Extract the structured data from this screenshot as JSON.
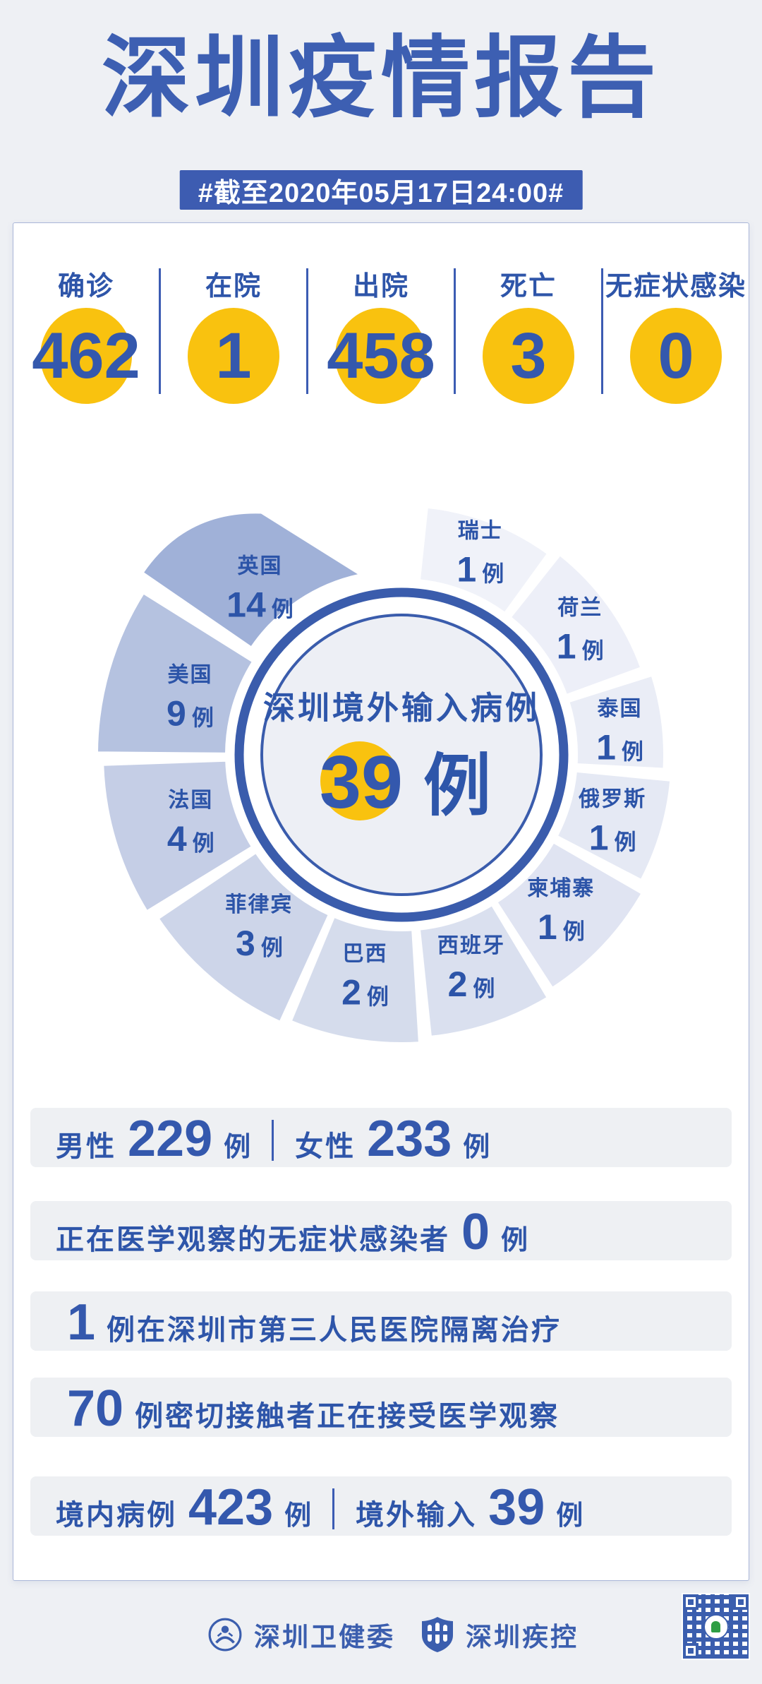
{
  "page": {
    "background": "#eef0f4",
    "accent_blue": "#3d5fb2",
    "text_blue": "#2e55a9",
    "number_blue": "#3458ad",
    "yellow": "#f9c20f"
  },
  "header": {
    "title": "深圳疫情报告",
    "date_badge": "#截至2020年05月17日24:00#"
  },
  "summary_stats": [
    {
      "label": "确诊",
      "value": "462"
    },
    {
      "label": "在院",
      "value": "1"
    },
    {
      "label": "出院",
      "value": "458"
    },
    {
      "label": "死亡",
      "value": "3"
    },
    {
      "label": "无症状感染",
      "value": "0"
    }
  ],
  "chart_data": {
    "type": "pie",
    "title": "深圳境外输入病例",
    "total_label": "39",
    "total_value": 39,
    "unit": "例",
    "legend_position": "labels-on-slices",
    "ring_color": "#3a5cac",
    "center_fill": "#edeff5",
    "highlight_circle_color": "#f9c20f",
    "slices": [
      {
        "name": "瑞士",
        "value": 1,
        "color": "#f0f2f9",
        "start": 6,
        "end": 36,
        "outer_r": 352
      },
      {
        "name": "荷兰",
        "value": 1,
        "color": "#edeff8",
        "start": 38.5,
        "end": 70,
        "outer_r": 361
      },
      {
        "name": "泰国",
        "value": 1,
        "color": "#eaedf6",
        "start": 72.5,
        "end": 93,
        "outer_r": 372
      },
      {
        "name": "俄罗斯",
        "value": 1,
        "color": "#e5e9f4",
        "start": 95.5,
        "end": 117.5,
        "outer_r": 383
      },
      {
        "name": "柬埔寨",
        "value": 1,
        "color": "#e0e4f2",
        "start": 120,
        "end": 147,
        "outer_r": 393
      },
      {
        "name": "西班牙",
        "value": 2,
        "color": "#dae0ef",
        "start": 149,
        "end": 174,
        "outer_r": 401
      },
      {
        "name": "巴西",
        "value": 2,
        "color": "#d5dcec",
        "start": 176.5,
        "end": 202.5,
        "outer_r": 408
      },
      {
        "name": "菲律宾",
        "value": 3,
        "color": "#cdd5e9",
        "start": 204.5,
        "end": 236,
        "outer_r": 415
      },
      {
        "name": "法国",
        "value": 4,
        "color": "#c5cee6",
        "start": 238.5,
        "end": 268,
        "outer_r": 423
      },
      {
        "name": "美国",
        "value": 9,
        "color": "#b5c2e0",
        "start": 270.5,
        "end": 302,
        "outer_r": 431
      },
      {
        "name": "英国",
        "value": 14,
        "color": "#a0b1d8",
        "start": 304.5,
        "end": 348,
        "outer_r": 435,
        "highlight": true,
        "tip_r": 382,
        "tip_angle": 330,
        "label_angle": 320,
        "label_r": 300,
        "explode": 14
      }
    ]
  },
  "detail_rows": [
    {
      "segments": [
        [
          "text",
          "男性"
        ],
        [
          "num",
          "229"
        ],
        [
          "unit",
          "例"
        ],
        [
          "bar",
          ""
        ],
        [
          "text",
          "女性"
        ],
        [
          "num",
          "233"
        ],
        [
          "unit",
          "例"
        ]
      ]
    },
    {
      "segments": [
        [
          "text",
          "正在医学观察的无症状感染者"
        ],
        [
          "num",
          "0"
        ],
        [
          "unit",
          "例"
        ]
      ]
    },
    {
      "segments": [
        [
          "num",
          "1"
        ],
        [
          "text",
          "例在深圳市第三人民医院隔离治疗"
        ]
      ]
    },
    {
      "segments": [
        [
          "num",
          "70"
        ],
        [
          "text",
          "例密切接触者正在接受医学观察"
        ]
      ]
    },
    {
      "segments": [
        [
          "text",
          "境内病例"
        ],
        [
          "num",
          "423"
        ],
        [
          "unit",
          "例"
        ],
        [
          "bar",
          ""
        ],
        [
          "text",
          "境外输入"
        ],
        [
          "num",
          "39"
        ],
        [
          "unit",
          "例"
        ]
      ]
    }
  ],
  "footer": {
    "org1": "深圳卫健委",
    "org2": "深圳疾控",
    "qr_label": "qr-code"
  }
}
